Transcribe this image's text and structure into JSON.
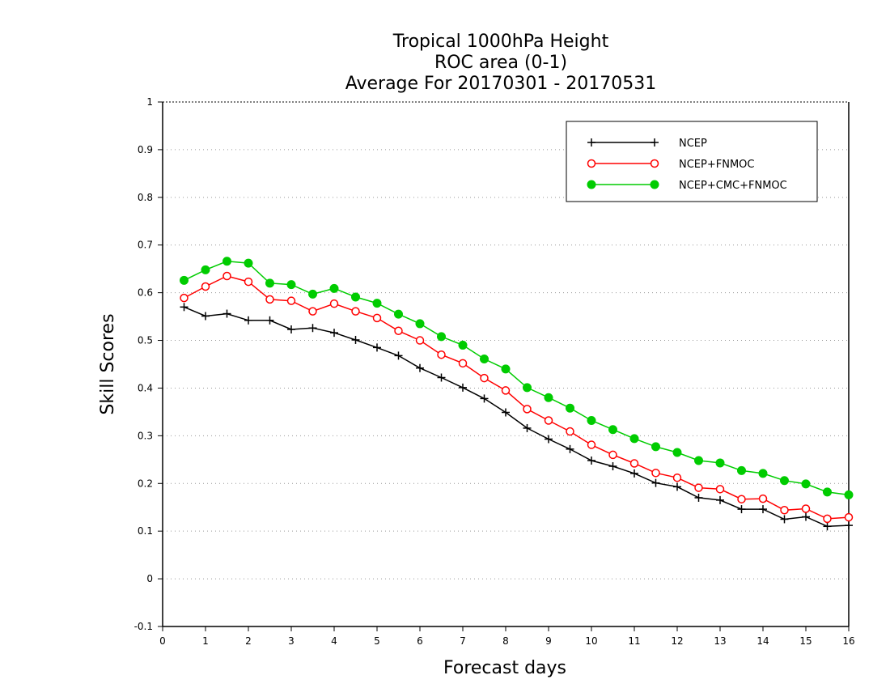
{
  "chart_data": {
    "type": "line",
    "title_lines": [
      "Tropical 1000hPa Height",
      "ROC area (0-1)",
      "Average For 20170301 - 20170531"
    ],
    "xlabel": "Forecast days",
    "ylabel": "Skill Scores",
    "xlim": [
      0,
      16
    ],
    "ylim": [
      -0.1,
      1
    ],
    "x_ticks": [
      "0",
      "1",
      "2",
      "3",
      "4",
      "5",
      "6",
      "7",
      "8",
      "9",
      "10",
      "11",
      "12",
      "13",
      "14",
      "15",
      "16"
    ],
    "y_ticks": [
      "-0.1",
      "0",
      "0.1",
      "0.2",
      "0.3",
      "0.4",
      "0.5",
      "0.6",
      "0.7",
      "0.8",
      "0.9",
      "1"
    ],
    "grid": "horizontal dotted",
    "legend_position": "top-right",
    "x": [
      0.5,
      1,
      1.5,
      2,
      2.5,
      3,
      3.5,
      4,
      4.5,
      5,
      5.5,
      6,
      6.5,
      7,
      7.5,
      8,
      8.5,
      9,
      9.5,
      10,
      10.5,
      11,
      11.5,
      12,
      12.5,
      13,
      13.5,
      14,
      14.5,
      15,
      15.5,
      16
    ],
    "series": [
      {
        "name": "NCEP",
        "color": "#000000",
        "marker": "plus",
        "values": [
          0.57,
          0.551,
          0.556,
          0.542,
          0.542,
          0.523,
          0.526,
          0.516,
          0.501,
          0.485,
          0.468,
          0.442,
          0.422,
          0.401,
          0.378,
          0.349,
          0.316,
          0.293,
          0.272,
          0.248,
          0.236,
          0.221,
          0.201,
          0.193,
          0.17,
          0.165,
          0.146,
          0.146,
          0.125,
          0.13,
          0.11,
          0.112
        ]
      },
      {
        "name": "NCEP+FNMOC",
        "color": "#ff0000",
        "marker": "open-circle",
        "values": [
          0.589,
          0.613,
          0.635,
          0.623,
          0.586,
          0.583,
          0.561,
          0.577,
          0.561,
          0.547,
          0.52,
          0.5,
          0.47,
          0.452,
          0.421,
          0.395,
          0.356,
          0.332,
          0.309,
          0.281,
          0.26,
          0.242,
          0.222,
          0.212,
          0.191,
          0.188,
          0.167,
          0.168,
          0.144,
          0.147,
          0.126,
          0.129
        ]
      },
      {
        "name": "NCEP+CMC+FNMOC",
        "color": "#00cc00",
        "marker": "filled-circle",
        "values": [
          0.626,
          0.648,
          0.666,
          0.662,
          0.62,
          0.617,
          0.597,
          0.609,
          0.591,
          0.578,
          0.555,
          0.535,
          0.508,
          0.49,
          0.461,
          0.44,
          0.401,
          0.38,
          0.358,
          0.332,
          0.313,
          0.294,
          0.277,
          0.265,
          0.248,
          0.243,
          0.227,
          0.221,
          0.206,
          0.199,
          0.182,
          0.176
        ]
      }
    ]
  }
}
